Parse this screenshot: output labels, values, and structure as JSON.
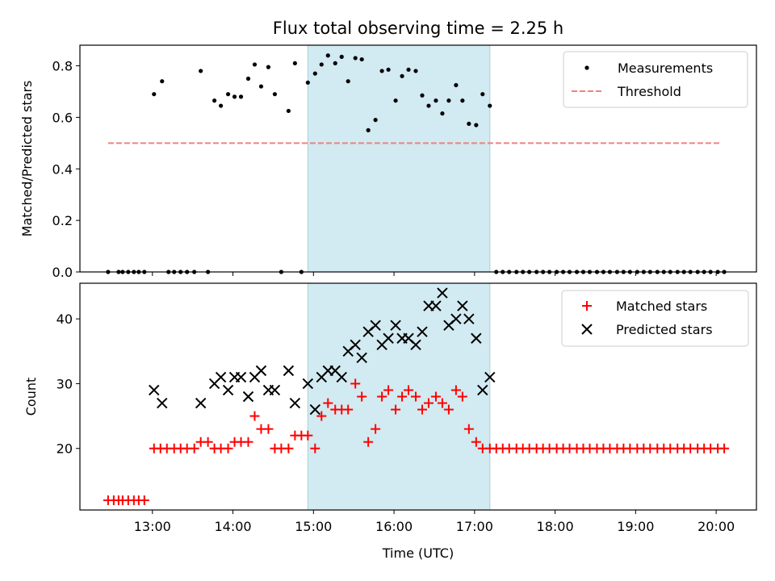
{
  "chart_data": [
    {
      "type": "scatter",
      "title": "Flux total observing time = 2.25 h",
      "xlabel": "",
      "ylabel": "Matched/Predicted stars",
      "xlim": [
        12.1,
        20.5
      ],
      "ylim": [
        0.0,
        0.88
      ],
      "yticks": [
        0.0,
        0.2,
        0.4,
        0.6,
        0.8
      ],
      "ytick_labels": [
        "0.0",
        "0.2",
        "0.4",
        "0.6",
        "0.8"
      ],
      "xticks": [
        13,
        14,
        15,
        16,
        17,
        18,
        19,
        20
      ],
      "show_xtick_labels": false,
      "legend_position": "top-right",
      "shaded_span": {
        "x0": 14.93,
        "x1": 17.19,
        "color": "#add8e6"
      },
      "threshold": {
        "name": "Threshold",
        "value": 0.5,
        "x0": 12.45,
        "x1": 20.05,
        "color": "#f08080"
      },
      "series": [
        {
          "name": "Measurements",
          "marker": "dot",
          "color": "#000000",
          "x": [
            12.45,
            12.58,
            12.63,
            12.7,
            12.77,
            12.83,
            12.9,
            13.02,
            13.12,
            13.2,
            13.27,
            13.35,
            13.43,
            13.52,
            13.6,
            13.69,
            13.77,
            13.85,
            13.94,
            14.02,
            14.1,
            14.19,
            14.27,
            14.35,
            14.44,
            14.52,
            14.6,
            14.69,
            14.77,
            14.85,
            14.93,
            15.02,
            15.1,
            15.18,
            15.27,
            15.35,
            15.43,
            15.52,
            15.6,
            15.68,
            15.77,
            15.85,
            15.93,
            16.02,
            16.1,
            16.18,
            16.27,
            16.35,
            16.43,
            16.52,
            16.6,
            16.68,
            16.77,
            16.85,
            16.93,
            17.02,
            17.1,
            17.19,
            17.27,
            17.35,
            17.43,
            17.52,
            17.6,
            17.68,
            17.77,
            17.85,
            17.93,
            18.02,
            18.1,
            18.18,
            18.27,
            18.35,
            18.43,
            18.52,
            18.6,
            18.68,
            18.77,
            18.85,
            18.93,
            19.02,
            19.1,
            19.18,
            19.27,
            19.35,
            19.43,
            19.52,
            19.6,
            19.68,
            19.77,
            19.85,
            19.93,
            20.02,
            20.1
          ],
          "y": [
            0.0,
            0.0,
            0.0,
            0.0,
            0.0,
            0.0,
            0.0,
            0.69,
            0.74,
            0.0,
            0.0,
            0.0,
            0.0,
            0.0,
            0.78,
            0.0,
            0.665,
            0.645,
            0.69,
            0.68,
            0.68,
            0.75,
            0.805,
            0.72,
            0.795,
            0.69,
            0.0,
            0.625,
            0.81,
            0.0,
            0.735,
            0.77,
            0.805,
            0.84,
            0.81,
            0.835,
            0.74,
            0.83,
            0.825,
            0.55,
            0.59,
            0.78,
            0.785,
            0.665,
            0.76,
            0.785,
            0.78,
            0.685,
            0.645,
            0.665,
            0.615,
            0.665,
            0.725,
            0.665,
            0.575,
            0.57,
            0.69,
            0.645,
            0.0,
            0.0,
            0.0,
            0.0,
            0.0,
            0.0,
            0.0,
            0.0,
            0.0,
            0.0,
            0.0,
            0.0,
            0.0,
            0.0,
            0.0,
            0.0,
            0.0,
            0.0,
            0.0,
            0.0,
            0.0,
            0.0,
            0.0,
            0.0,
            0.0,
            0.0,
            0.0,
            0.0,
            0.0,
            0.0,
            0.0,
            0.0,
            0.0,
            0.0,
            0.0
          ]
        }
      ]
    },
    {
      "type": "scatter",
      "title": "",
      "xlabel": "Time (UTC)",
      "ylabel": "Count",
      "xlim": [
        12.1,
        20.5
      ],
      "ylim": [
        10.5,
        45.5
      ],
      "yticks": [
        20,
        30,
        40
      ],
      "ytick_labels": [
        "20",
        "30",
        "40"
      ],
      "xticks": [
        13,
        14,
        15,
        16,
        17,
        18,
        19,
        20
      ],
      "xtick_labels": [
        "13:00",
        "14:00",
        "15:00",
        "16:00",
        "17:00",
        "18:00",
        "19:00",
        "20:00"
      ],
      "legend_position": "top-right",
      "shaded_span": {
        "x0": 14.93,
        "x1": 17.19,
        "color": "#add8e6"
      },
      "series": [
        {
          "name": "Matched stars",
          "marker": "plus",
          "color": "#ff0000",
          "x": [
            12.45,
            12.52,
            12.58,
            12.63,
            12.7,
            12.77,
            12.83,
            12.9,
            13.02,
            13.1,
            13.18,
            13.27,
            13.35,
            13.43,
            13.52,
            13.6,
            13.69,
            13.77,
            13.85,
            13.94,
            14.02,
            14.1,
            14.19,
            14.27,
            14.35,
            14.44,
            14.52,
            14.6,
            14.69,
            14.77,
            14.85,
            14.93,
            15.02,
            15.1,
            15.18,
            15.27,
            15.35,
            15.43,
            15.52,
            15.6,
            15.68,
            15.77,
            15.85,
            15.93,
            16.02,
            16.1,
            16.18,
            16.27,
            16.35,
            16.43,
            16.52,
            16.6,
            16.68,
            16.77,
            16.85,
            16.93,
            17.02,
            17.1,
            17.19,
            17.27,
            17.35,
            17.43,
            17.52,
            17.6,
            17.68,
            17.77,
            17.85,
            17.93,
            18.02,
            18.1,
            18.18,
            18.27,
            18.35,
            18.43,
            18.52,
            18.6,
            18.68,
            18.77,
            18.85,
            18.93,
            19.02,
            19.1,
            19.18,
            19.27,
            19.35,
            19.43,
            19.52,
            19.6,
            19.68,
            19.77,
            19.85,
            19.93,
            20.02,
            20.1
          ],
          "y": [
            12,
            12,
            12,
            12,
            12,
            12,
            12,
            12,
            20,
            20,
            20,
            20,
            20,
            20,
            20,
            21,
            21,
            20,
            20,
            20,
            21,
            21,
            21,
            25,
            23,
            23,
            20,
            20,
            20,
            22,
            22,
            22,
            20,
            25,
            27,
            26,
            26,
            26,
            30,
            28,
            21,
            23,
            28,
            29,
            26,
            28,
            29,
            28,
            26,
            27,
            28,
            27,
            26,
            29,
            28,
            23,
            21,
            20,
            20,
            20,
            20,
            20,
            20,
            20,
            20,
            20,
            20,
            20,
            20,
            20,
            20,
            20,
            20,
            20,
            20,
            20,
            20,
            20,
            20,
            20,
            20,
            20,
            20,
            20,
            20,
            20,
            20,
            20,
            20,
            20,
            20,
            20,
            20,
            20
          ]
        },
        {
          "name": "Predicted stars",
          "marker": "x",
          "color": "#000000",
          "x": [
            13.02,
            13.12,
            13.6,
            13.77,
            13.85,
            13.94,
            14.02,
            14.1,
            14.19,
            14.27,
            14.35,
            14.44,
            14.52,
            14.69,
            14.77,
            14.93,
            15.02,
            15.1,
            15.18,
            15.27,
            15.35,
            15.43,
            15.52,
            15.6,
            15.68,
            15.77,
            15.85,
            15.93,
            16.02,
            16.1,
            16.18,
            16.27,
            16.35,
            16.43,
            16.52,
            16.6,
            16.68,
            16.77,
            16.85,
            16.93,
            17.02,
            17.1,
            17.19
          ],
          "y": [
            29,
            27,
            27,
            30,
            31,
            29,
            31,
            31,
            28,
            31,
            32,
            29,
            29,
            32,
            27,
            30,
            26,
            31,
            32,
            32,
            31,
            35,
            36,
            34,
            38,
            39,
            36,
            37,
            39,
            37,
            37,
            36,
            38,
            42,
            42,
            44,
            39,
            40,
            42,
            40,
            37,
            29,
            31
          ]
        }
      ]
    }
  ]
}
